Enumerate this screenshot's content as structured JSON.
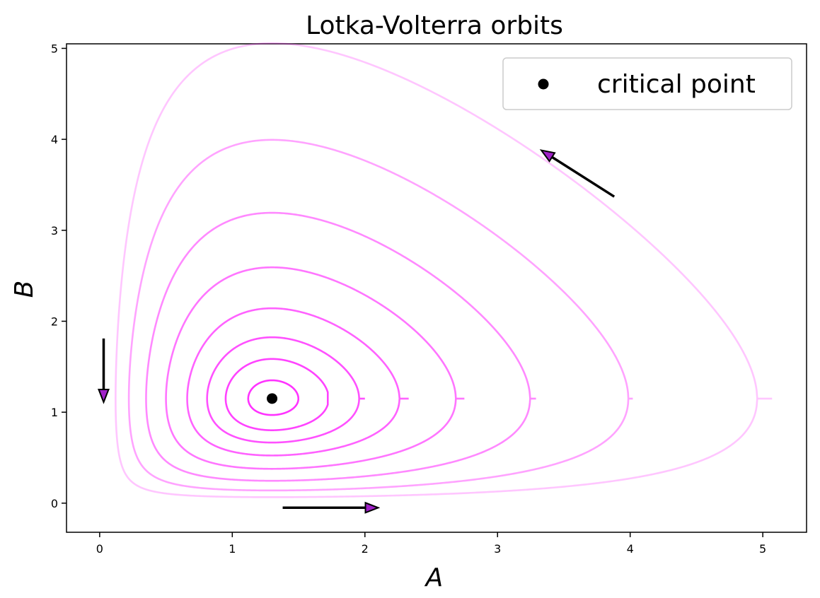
{
  "chart_data": {
    "type": "line",
    "title": "Lotka-Volterra orbits",
    "xlabel": "A",
    "ylabel": "B",
    "xlim": [
      -0.25,
      5.33
    ],
    "ylim": [
      -0.32,
      5.05
    ],
    "xticks": [
      0,
      1,
      2,
      3,
      4,
      5
    ],
    "yticks": [
      0,
      1,
      2,
      3,
      4,
      5
    ],
    "grid": false,
    "legend": {
      "placement": "top-right",
      "entries": [
        "critical point"
      ]
    },
    "critical_point": {
      "x": 1.3,
      "y": 1.15,
      "color": "#000000"
    },
    "orbit_model": {
      "alpha": 1.0,
      "beta": 0.87,
      "delta": 1.0,
      "gamma": 1.3
    },
    "series": [
      {
        "A_min": 1.12,
        "A_max": 1.5,
        "B_min": 0.98,
        "B_max": 1.33,
        "color": "#ff33ff",
        "opacity": 1.0
      },
      {
        "A_min": 0.95,
        "A_max": 1.72,
        "B_min": 0.83,
        "B_max": 1.55,
        "color": "#ff33ff",
        "opacity": 0.92
      },
      {
        "A_min": 0.81,
        "A_max": 2.0,
        "B_min": 0.68,
        "B_max": 1.82,
        "color": "#ff33ff",
        "opacity": 0.85
      },
      {
        "A_min": 0.66,
        "A_max": 2.33,
        "B_min": 0.51,
        "B_max": 2.14,
        "color": "#ff33ff",
        "opacity": 0.77
      },
      {
        "A_min": 0.5,
        "A_max": 2.75,
        "B_min": 0.37,
        "B_max": 2.54,
        "color": "#ff33ff",
        "opacity": 0.68
      },
      {
        "A_min": 0.35,
        "A_max": 3.29,
        "B_min": 0.25,
        "B_max": 3.05,
        "color": "#ff33ff",
        "opacity": 0.58
      },
      {
        "A_min": 0.22,
        "A_max": 4.02,
        "B_min": 0.16,
        "B_max": 3.76,
        "color": "#ff33ff",
        "opacity": 0.45
      },
      {
        "A_min": 0.12,
        "A_max": 5.07,
        "B_min": 0.09,
        "B_max": 4.79,
        "color": "#ff33ff",
        "opacity": 0.28
      }
    ],
    "arrows": [
      {
        "from": [
          0.03,
          1.81
        ],
        "to": [
          0.03,
          1.11
        ],
        "direction": "down"
      },
      {
        "from": [
          1.38,
          -0.05
        ],
        "to": [
          2.1,
          -0.05
        ],
        "direction": "right"
      },
      {
        "from": [
          3.88,
          3.37
        ],
        "to": [
          3.33,
          3.88
        ],
        "direction": "up-left"
      }
    ]
  }
}
